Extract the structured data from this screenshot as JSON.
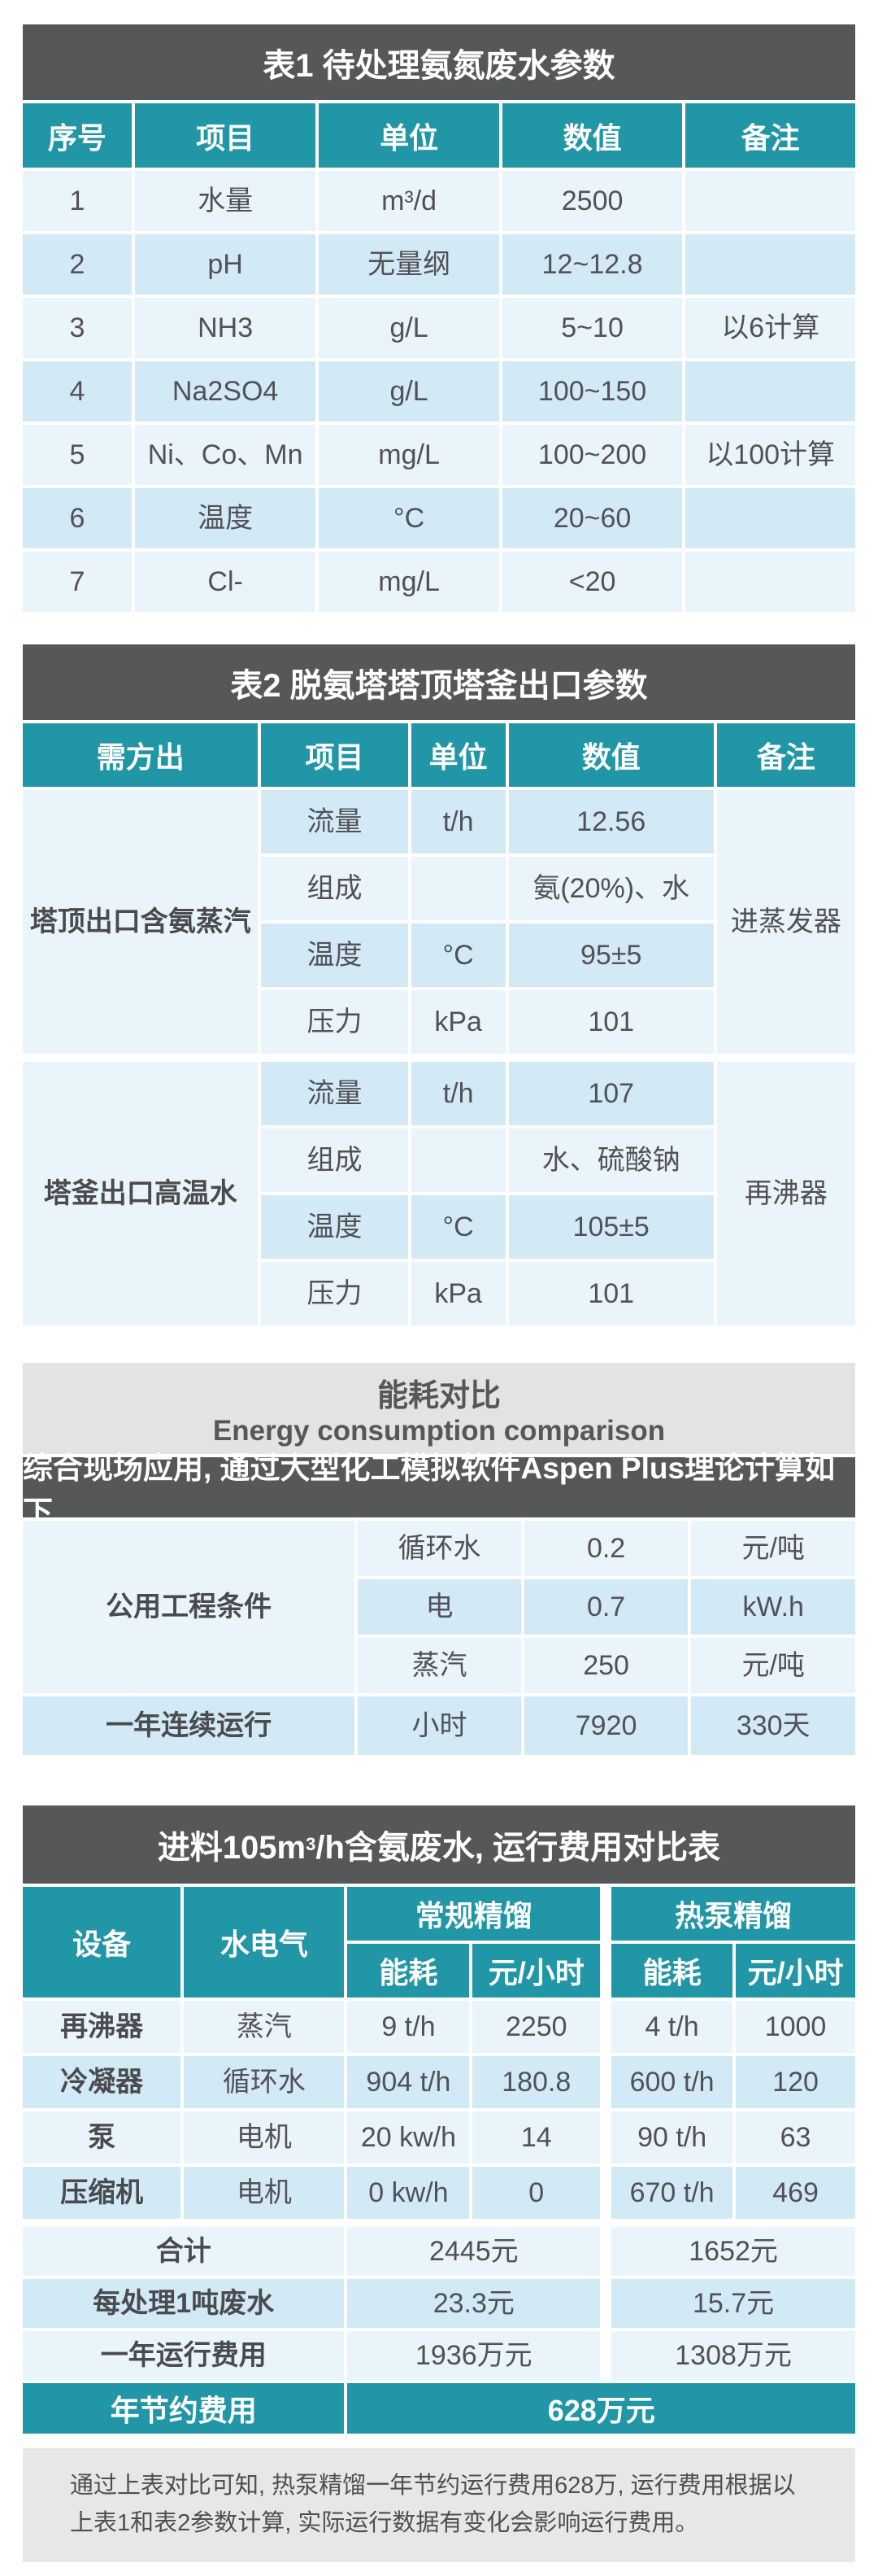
{
  "colors": {
    "teal": "#2196A6",
    "dark_band": "#565759",
    "row_light": "#E9F4FB",
    "row_dark": "#D2E9F6",
    "gray_band": "#E3E3E3",
    "note_bg": "#E7E7E7",
    "text": "#515257"
  },
  "table1": {
    "title": "表1  待处理氨氮废水参数",
    "headers": [
      "序号",
      "项目",
      "单位",
      "数值",
      "备注"
    ],
    "rows": [
      [
        "1",
        "水量",
        "m³/d",
        "2500",
        ""
      ],
      [
        "2",
        "pH",
        "无量纲",
        "12~12.8",
        ""
      ],
      [
        "3",
        "NH3",
        "g/L",
        "5~10",
        "以6计算"
      ],
      [
        "4",
        "Na2SO4",
        "g/L",
        "100~150",
        ""
      ],
      [
        "5",
        "Ni、Co、Mn",
        "mg/L",
        "100~200",
        "以100计算"
      ],
      [
        "6",
        "温度",
        "°C",
        "20~60",
        ""
      ],
      [
        "7",
        "Cl-",
        "mg/L",
        "<20",
        ""
      ]
    ]
  },
  "table2": {
    "title": "表2  脱氨塔塔顶塔釜出口参数",
    "headers": [
      "需方出",
      "项目",
      "单位",
      "数值",
      "备注"
    ],
    "groups": [
      {
        "label": "塔顶出口含氨蒸汽",
        "remark": "进蒸发器",
        "rows": [
          [
            "流量",
            "t/h",
            "12.56"
          ],
          [
            "组成",
            "",
            "氨(20%)、水"
          ],
          [
            "温度",
            "°C",
            "95±5"
          ],
          [
            "压力",
            "kPa",
            "101"
          ]
        ]
      },
      {
        "label": "塔釜出口高温水",
        "remark": "再沸器",
        "rows": [
          [
            "流量",
            "t/h",
            "107"
          ],
          [
            "组成",
            "",
            "水、硫酸钠"
          ],
          [
            "温度",
            "°C",
            "105±5"
          ],
          [
            "压力",
            "kPa",
            "101"
          ]
        ]
      }
    ]
  },
  "table3": {
    "title_zh": "能耗对比",
    "title_en": "Energy consumption comparison",
    "subtitle": "综合现场应用, 通过大型化工模拟软件Aspen Plus理论计算如下",
    "utility_label": "公用工程条件",
    "utility_rows": [
      [
        "循环水",
        "0.2",
        "元/吨"
      ],
      [
        "电",
        "0.7",
        "kW.h"
      ],
      [
        "蒸汽",
        "250",
        "元/吨"
      ]
    ],
    "run_row": [
      "一年连续运行",
      "小时",
      "7920",
      "330天"
    ]
  },
  "table4": {
    "title_prefix": "进料105m",
    "title_sup": "3",
    "title_suffix": "/h含氨废水, 运行费用对比表",
    "headers": {
      "device": "设备",
      "utility": "水电气",
      "conventional": "常规精馏",
      "heat_pump": "热泵精馏",
      "energy": "能耗",
      "cost": "元/小时"
    },
    "rows": [
      [
        "再沸器",
        "蒸汽",
        "9 t/h",
        "2250",
        "4 t/h",
        "1000"
      ],
      [
        "冷凝器",
        "循环水",
        "904 t/h",
        "180.8",
        "600 t/h",
        "120"
      ],
      [
        "泵",
        "电机",
        "20 kw/h",
        "14",
        "90 t/h",
        "63"
      ],
      [
        "压缩机",
        "电机",
        "0 kw/h",
        "0",
        "670 t/h",
        "469"
      ]
    ],
    "summary_rows": [
      [
        "合计",
        "2445元",
        "1652元"
      ],
      [
        "每处理1吨废水",
        "23.3元",
        "15.7元"
      ],
      [
        "一年运行费用",
        "1936万元",
        "1308万元"
      ]
    ],
    "saving_row": {
      "label": "年节约费用",
      "value": "628万元"
    }
  },
  "footer": {
    "note": "通过上表对比可知, 热泵精馏一年节约运行费用628万, 运行费用根据以上表1和表2参数计算, 实际运行数据有变化会影响运行费用。"
  }
}
